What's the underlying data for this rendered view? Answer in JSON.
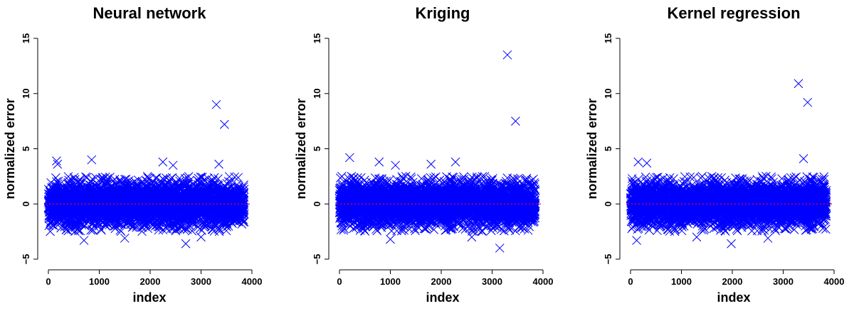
{
  "chart_data": [
    {
      "type": "scatter",
      "title": "Neural network",
      "xlabel": "index",
      "ylabel": "normalized error",
      "xlim": [
        0,
        4000
      ],
      "ylim": [
        -5,
        15
      ],
      "xticks": [
        "0",
        "1000",
        "2000",
        "3000",
        "4000"
      ],
      "yticks": [
        "−5",
        "0",
        "5",
        "10",
        "15"
      ],
      "marker": "x",
      "color": "#0000ff",
      "reference_line": {
        "y": 0,
        "color": "#ff0000",
        "style": "dotted"
      },
      "n_points": 3850,
      "bulk_range": [
        -2.5,
        2.5
      ],
      "outliers": [
        {
          "x": 160,
          "y": 3.9
        },
        {
          "x": 180,
          "y": 3.6
        },
        {
          "x": 850,
          "y": 4.0
        },
        {
          "x": 2250,
          "y": 3.8
        },
        {
          "x": 2450,
          "y": 3.5
        },
        {
          "x": 3300,
          "y": 9.0
        },
        {
          "x": 3350,
          "y": 3.6
        },
        {
          "x": 3460,
          "y": 7.2
        },
        {
          "x": 2700,
          "y": -3.6
        },
        {
          "x": 700,
          "y": -3.3
        },
        {
          "x": 1500,
          "y": -3.1
        },
        {
          "x": 3000,
          "y": -3.0
        }
      ]
    },
    {
      "type": "scatter",
      "title": "Kriging",
      "xlabel": "index",
      "ylabel": "normalized error",
      "xlim": [
        0,
        4000
      ],
      "ylim": [
        -5,
        15
      ],
      "xticks": [
        "0",
        "1000",
        "2000",
        "3000",
        "4000"
      ],
      "yticks": [
        "−5",
        "0",
        "5",
        "10",
        "15"
      ],
      "marker": "x",
      "color": "#0000ff",
      "reference_line": {
        "y": 0,
        "color": "#ff0000",
        "style": "dotted"
      },
      "n_points": 3850,
      "bulk_range": [
        -2.5,
        2.5
      ],
      "outliers": [
        {
          "x": 200,
          "y": 4.2
        },
        {
          "x": 780,
          "y": 3.8
        },
        {
          "x": 1100,
          "y": 3.5
        },
        {
          "x": 1800,
          "y": 3.6
        },
        {
          "x": 2280,
          "y": 3.8
        },
        {
          "x": 3300,
          "y": 13.5
        },
        {
          "x": 3460,
          "y": 7.5
        },
        {
          "x": 3150,
          "y": -4.0
        },
        {
          "x": 1000,
          "y": -3.2
        },
        {
          "x": 2600,
          "y": -3.0
        }
      ]
    },
    {
      "type": "scatter",
      "title": "Kernel regression",
      "xlabel": "index",
      "ylabel": "normalized error",
      "xlim": [
        0,
        4000
      ],
      "ylim": [
        -5,
        15
      ],
      "xticks": [
        "0",
        "1000",
        "2000",
        "3000",
        "4000"
      ],
      "yticks": [
        "−5",
        "0",
        "5",
        "10",
        "15"
      ],
      "marker": "x",
      "color": "#0000ff",
      "reference_line": {
        "y": 0,
        "color": "#ff0000",
        "style": "dotted"
      },
      "n_points": 3850,
      "bulk_range": [
        -2.5,
        2.5
      ],
      "outliers": [
        {
          "x": 150,
          "y": 3.8
        },
        {
          "x": 320,
          "y": 3.7
        },
        {
          "x": 3300,
          "y": 10.9
        },
        {
          "x": 3400,
          "y": 4.1
        },
        {
          "x": 3480,
          "y": 9.2
        },
        {
          "x": 1980,
          "y": -3.6
        },
        {
          "x": 1300,
          "y": -3.0
        },
        {
          "x": 2700,
          "y": -3.1
        },
        {
          "x": 120,
          "y": -3.3
        }
      ]
    }
  ]
}
